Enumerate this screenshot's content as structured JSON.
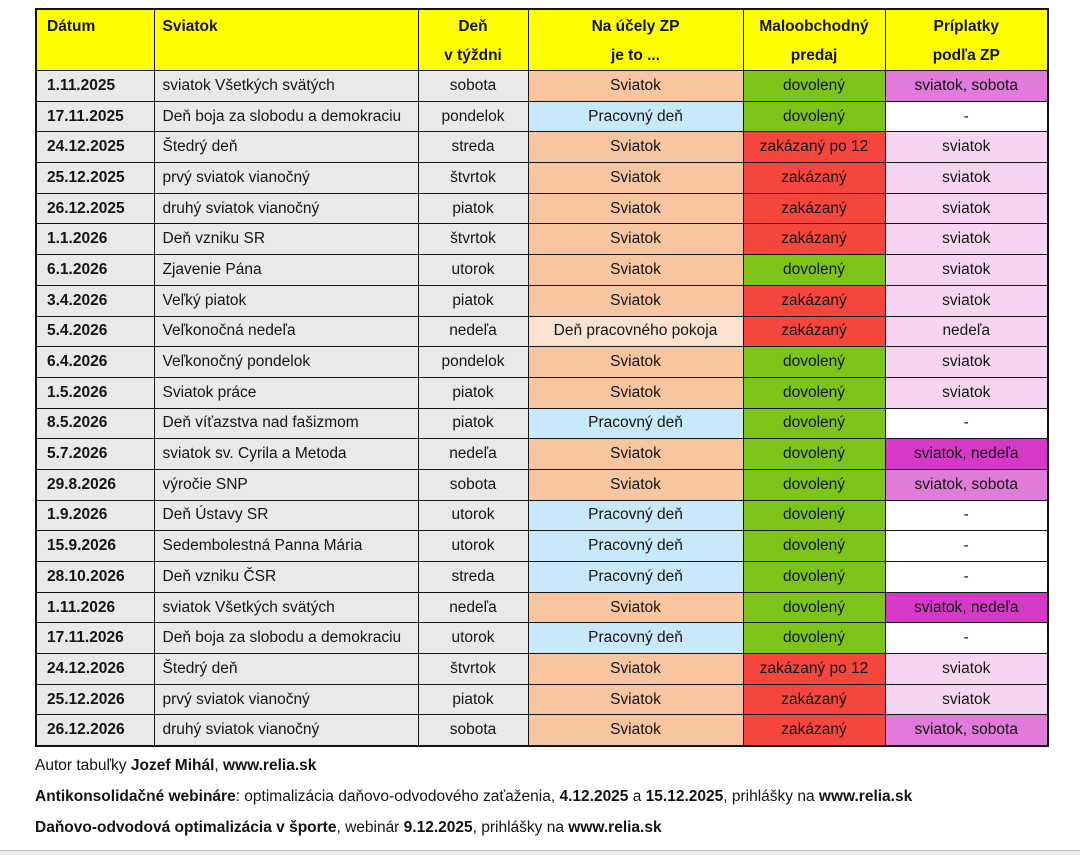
{
  "colors": {
    "header_bg": "#FFFF00",
    "row_bg": "#E9E9E9",
    "holiday_bg": "#F7C6A0",
    "workday_bg": "#C8E9FA",
    "rest_bg": "#FBE2D0",
    "allowed_bg": "#7CC417",
    "forbidden_bg": "#F4463C",
    "supp_light_bg": "#F5D5F1",
    "supp_medium_bg": "#E07BDA",
    "supp_strong_bg": "#D639C8",
    "border": "#141414",
    "text": "#141414",
    "page_bg": "#FFFFFF",
    "strip_bg": "#ECECEC"
  },
  "table": {
    "headers": [
      {
        "line1": "Dátum",
        "line2": ""
      },
      {
        "line1": "Sviatok",
        "line2": ""
      },
      {
        "line1": "Deň",
        "line2": "v týždni"
      },
      {
        "line1": "Na účely ZP",
        "line2": "je to ..."
      },
      {
        "line1": "Maloobchodný",
        "line2": "predaj"
      },
      {
        "line1": "Príplatky",
        "line2": "podľa ZP"
      }
    ],
    "rows": [
      {
        "date": "1.11.2025",
        "holiday": "sviatok Všetkých svätých",
        "day": "sobota",
        "zp": "Sviatok",
        "zp_style": "holiday",
        "retail": "dovolený",
        "retail_style": "allowed",
        "supplement": "sviatok, sobota",
        "supplement_style": "medium"
      },
      {
        "date": "17.11.2025",
        "holiday": "Deň boja za slobodu a demokraciu",
        "day": "pondelok",
        "zp": "Pracovný deň",
        "zp_style": "workday",
        "retail": "dovolený",
        "retail_style": "allowed",
        "supplement": "-",
        "supplement_style": "none"
      },
      {
        "date": "24.12.2025",
        "holiday": "Štedrý deň",
        "day": "streda",
        "zp": "Sviatok",
        "zp_style": "holiday",
        "retail": "zakázaný po 12",
        "retail_style": "forbidden",
        "supplement": "sviatok",
        "supplement_style": "light"
      },
      {
        "date": "25.12.2025",
        "holiday": "prvý sviatok vianočný",
        "day": "štvrtok",
        "zp": "Sviatok",
        "zp_style": "holiday",
        "retail": "zakázaný",
        "retail_style": "forbidden",
        "supplement": "sviatok",
        "supplement_style": "light"
      },
      {
        "date": "26.12.2025",
        "holiday": "druhý sviatok vianočný",
        "day": "piatok",
        "zp": "Sviatok",
        "zp_style": "holiday",
        "retail": "zakázaný",
        "retail_style": "forbidden",
        "supplement": "sviatok",
        "supplement_style": "light"
      },
      {
        "date": "1.1.2026",
        "holiday": "Deň vzniku SR",
        "day": "štvrtok",
        "zp": "Sviatok",
        "zp_style": "holiday",
        "retail": "zakázaný",
        "retail_style": "forbidden",
        "supplement": "sviatok",
        "supplement_style": "light"
      },
      {
        "date": "6.1.2026",
        "holiday": "Zjavenie Pána",
        "day": "utorok",
        "zp": "Sviatok",
        "zp_style": "holiday",
        "retail": "dovolený",
        "retail_style": "allowed",
        "supplement": "sviatok",
        "supplement_style": "light"
      },
      {
        "date": "3.4.2026",
        "holiday": "Veľký piatok",
        "day": "piatok",
        "zp": "Sviatok",
        "zp_style": "holiday",
        "retail": "zakázaný",
        "retail_style": "forbidden",
        "supplement": "sviatok",
        "supplement_style": "light"
      },
      {
        "date": "5.4.2026",
        "holiday": "Veľkonočná nedeľa",
        "day": "nedeľa",
        "zp": "Deň pracovného pokoja",
        "zp_style": "rest",
        "retail": "zakázaný",
        "retail_style": "forbidden",
        "supplement": "nedeľa",
        "supplement_style": "light"
      },
      {
        "date": "6.4.2026",
        "holiday": "Veľkonočný pondelok",
        "day": "pondelok",
        "zp": "Sviatok",
        "zp_style": "holiday",
        "retail": "dovolený",
        "retail_style": "allowed",
        "supplement": "sviatok",
        "supplement_style": "light"
      },
      {
        "date": "1.5.2026",
        "holiday": "Sviatok práce",
        "day": "piatok",
        "zp": "Sviatok",
        "zp_style": "holiday",
        "retail": "dovolený",
        "retail_style": "allowed",
        "supplement": "sviatok",
        "supplement_style": "light"
      },
      {
        "date": "8.5.2026",
        "holiday": "Deň víťazstva nad fašizmom",
        "day": "piatok",
        "zp": "Pracovný deň",
        "zp_style": "workday",
        "retail": "dovolený",
        "retail_style": "allowed",
        "supplement": "-",
        "supplement_style": "none"
      },
      {
        "date": "5.7.2026",
        "holiday": "sviatok sv. Cyrila a Metoda",
        "day": "nedeľa",
        "zp": "Sviatok",
        "zp_style": "holiday",
        "retail": "dovolený",
        "retail_style": "allowed",
        "supplement": "sviatok, nedeľa",
        "supplement_style": "strong"
      },
      {
        "date": "29.8.2026",
        "holiday": "výročie SNP",
        "day": "sobota",
        "zp": "Sviatok",
        "zp_style": "holiday",
        "retail": "dovolený",
        "retail_style": "allowed",
        "supplement": "sviatok, sobota",
        "supplement_style": "medium"
      },
      {
        "date": "1.9.2026",
        "holiday": "Deň Ústavy SR",
        "day": "utorok",
        "zp": "Pracovný deň",
        "zp_style": "workday",
        "retail": "dovolený",
        "retail_style": "allowed",
        "supplement": "-",
        "supplement_style": "none"
      },
      {
        "date": "15.9.2026",
        "holiday": "Sedembolestná Panna Mária",
        "day": "utorok",
        "zp": "Pracovný deň",
        "zp_style": "workday",
        "retail": "dovolený",
        "retail_style": "allowed",
        "supplement": "-",
        "supplement_style": "none"
      },
      {
        "date": "28.10.2026",
        "holiday": "Deň vzniku ČSR",
        "day": "streda",
        "zp": "Pracovný deň",
        "zp_style": "workday",
        "retail": "dovolený",
        "retail_style": "allowed",
        "supplement": "-",
        "supplement_style": "none"
      },
      {
        "date": "1.11.2026",
        "holiday": "sviatok Všetkých svätých",
        "day": "nedeľa",
        "zp": "Sviatok",
        "zp_style": "holiday",
        "retail": "dovolený",
        "retail_style": "allowed",
        "supplement": "sviatok, nedeľa",
        "supplement_style": "strong"
      },
      {
        "date": "17.11.2026",
        "holiday": "Deň boja za slobodu a demokraciu",
        "day": "utorok",
        "zp": "Pracovný deň",
        "zp_style": "workday",
        "retail": "dovolený",
        "retail_style": "allowed",
        "supplement": "-",
        "supplement_style": "none"
      },
      {
        "date": "24.12.2026",
        "holiday": "Štedrý deň",
        "day": "štvrtok",
        "zp": "Sviatok",
        "zp_style": "holiday",
        "retail": "zakázaný po 12",
        "retail_style": "forbidden",
        "supplement": "sviatok",
        "supplement_style": "light"
      },
      {
        "date": "25.12.2026",
        "holiday": "prvý sviatok vianočný",
        "day": "piatok",
        "zp": "Sviatok",
        "zp_style": "holiday",
        "retail": "zakázaný",
        "retail_style": "forbidden",
        "supplement": "sviatok",
        "supplement_style": "light"
      },
      {
        "date": "26.12.2026",
        "holiday": "druhý sviatok vianočný",
        "day": "sobota",
        "zp": "Sviatok",
        "zp_style": "holiday",
        "retail": "zakázaný",
        "retail_style": "forbidden",
        "supplement": "sviatok, sobota",
        "supplement_style": "medium"
      }
    ]
  },
  "footer": {
    "lines": [
      {
        "segments": [
          {
            "text": "Autor tabuľky ",
            "bold": false
          },
          {
            "text": "Jozef Mihál",
            "bold": true
          },
          {
            "text": ", ",
            "bold": false
          },
          {
            "text": "www.relia.sk",
            "bold": true
          }
        ]
      },
      {
        "segments": [
          {
            "text": "Antikonsolidačné webináre",
            "bold": true
          },
          {
            "text": ": optimalizácia daňovo-odvodového zaťaženia, ",
            "bold": false
          },
          {
            "text": "4.12.2025",
            "bold": true
          },
          {
            "text": " a ",
            "bold": false
          },
          {
            "text": "15.12.2025",
            "bold": true
          },
          {
            "text": ", prihlášky na ",
            "bold": false
          },
          {
            "text": "www.relia.sk",
            "bold": true
          }
        ]
      },
      {
        "segments": [
          {
            "text": "Daňovo-odvodová optimalizácia v športe",
            "bold": true
          },
          {
            "text": ", webinár ",
            "bold": false
          },
          {
            "text": "9.12.2025",
            "bold": true
          },
          {
            "text": ", prihlášky na ",
            "bold": false
          },
          {
            "text": "www.relia.sk",
            "bold": true
          }
        ]
      }
    ]
  }
}
